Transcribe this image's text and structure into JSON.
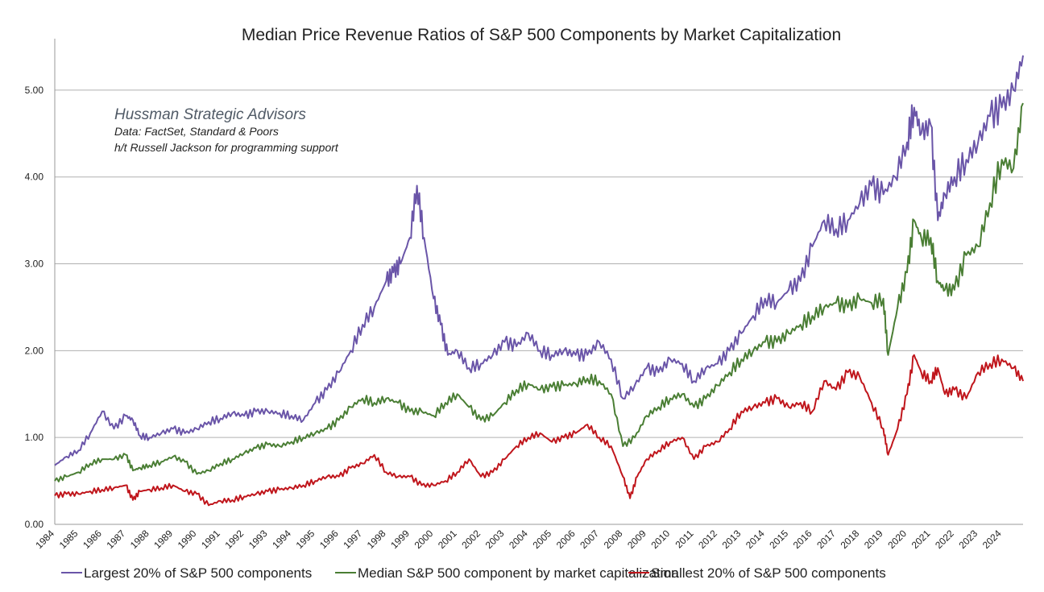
{
  "chart_data": {
    "type": "line",
    "title": "Median Price Revenue Ratios of S&P 500 Components by Market Capitalization",
    "annotations": [
      "Hussman Strategic Advisors",
      "Data: FactSet, Standard & Poors",
      "h/t Russell Jackson for programming support"
    ],
    "xlabel": "",
    "ylabel": "",
    "xlim": [
      1984,
      2024.9
    ],
    "ylim": [
      0,
      5.5
    ],
    "y_ticks": [
      "0.00",
      "1.00",
      "2.00",
      "3.00",
      "4.00",
      "5.00"
    ],
    "x_ticks": [
      "1984",
      "1985",
      "1986",
      "1987",
      "1988",
      "1989",
      "1990",
      "1991",
      "1992",
      "1993",
      "1994",
      "1995",
      "1996",
      "1997",
      "1998",
      "1999",
      "2000",
      "2001",
      "2002",
      "2003",
      "2004",
      "2005",
      "2006",
      "2007",
      "2008",
      "2009",
      "2010",
      "2011",
      "2012",
      "2013",
      "2014",
      "2015",
      "2016",
      "2017",
      "2018",
      "2019",
      "2020",
      "2021",
      "2022",
      "2023",
      "2024"
    ],
    "grid": "horizontal",
    "legend_position": "bottom",
    "series": [
      {
        "name": "Largest 20% of S&P 500 components",
        "color": "#6a55a8",
        "x": [
          1984.0,
          1984.5,
          1985.0,
          1985.5,
          1986.0,
          1986.5,
          1987.0,
          1987.3,
          1987.6,
          1988.0,
          1988.5,
          1989.0,
          1989.5,
          1990.0,
          1990.5,
          1991.0,
          1991.5,
          1992.0,
          1992.5,
          1993.0,
          1993.5,
          1994.0,
          1994.5,
          1995.0,
          1995.5,
          1996.0,
          1996.5,
          1997.0,
          1997.5,
          1998.0,
          1998.3,
          1998.6,
          1999.0,
          1999.3,
          1999.6,
          2000.0,
          2000.3,
          2000.6,
          2001.0,
          2001.5,
          2002.0,
          2002.5,
          2003.0,
          2003.5,
          2004.0,
          2004.5,
          2005.0,
          2005.5,
          2006.0,
          2006.5,
          2007.0,
          2007.5,
          2008.0,
          2008.5,
          2009.0,
          2009.5,
          2010.0,
          2010.5,
          2011.0,
          2011.5,
          2012.0,
          2012.5,
          2013.0,
          2013.5,
          2014.0,
          2014.5,
          2015.0,
          2015.5,
          2016.0,
          2016.5,
          2017.0,
          2017.5,
          2018.0,
          2018.5,
          2019.0,
          2019.5,
          2020.0,
          2020.3,
          2020.6,
          2021.0,
          2021.3,
          2021.6,
          2022.0,
          2022.5,
          2023.0,
          2023.5,
          2024.0,
          2024.5,
          2024.9
        ],
        "values": [
          0.68,
          0.78,
          0.85,
          1.05,
          1.3,
          1.1,
          1.25,
          1.2,
          1.02,
          1.0,
          1.05,
          1.1,
          1.05,
          1.1,
          1.18,
          1.22,
          1.28,
          1.25,
          1.3,
          1.3,
          1.28,
          1.25,
          1.2,
          1.4,
          1.55,
          1.75,
          2.0,
          2.3,
          2.5,
          2.8,
          2.9,
          3.0,
          3.3,
          3.9,
          3.3,
          2.6,
          2.3,
          1.95,
          2.0,
          1.8,
          1.85,
          1.95,
          2.1,
          2.05,
          2.2,
          2.0,
          1.95,
          2.0,
          1.95,
          1.95,
          2.1,
          1.9,
          1.45,
          1.6,
          1.8,
          1.75,
          1.9,
          1.85,
          1.65,
          1.8,
          1.85,
          2.0,
          2.2,
          2.4,
          2.6,
          2.55,
          2.7,
          2.8,
          3.2,
          3.5,
          3.4,
          3.5,
          3.7,
          3.9,
          3.8,
          4.0,
          4.4,
          4.8,
          4.5,
          4.6,
          3.5,
          3.8,
          4.0,
          4.2,
          4.4,
          4.7,
          4.8,
          5.0,
          5.4
        ]
      },
      {
        "name": "Median S&P 500 component by market capitalization",
        "color": "#4a7e34",
        "x": [
          1984.0,
          1984.5,
          1985.0,
          1985.5,
          1986.0,
          1986.5,
          1987.0,
          1987.3,
          1987.6,
          1988.0,
          1988.5,
          1989.0,
          1989.5,
          1990.0,
          1990.5,
          1991.0,
          1991.5,
          1992.0,
          1992.5,
          1993.0,
          1993.5,
          1994.0,
          1994.5,
          1995.0,
          1995.5,
          1996.0,
          1996.5,
          1997.0,
          1997.5,
          1998.0,
          1998.5,
          1999.0,
          1999.5,
          2000.0,
          2000.5,
          2001.0,
          2001.5,
          2002.0,
          2002.5,
          2003.0,
          2003.5,
          2004.0,
          2004.5,
          2005.0,
          2005.5,
          2006.0,
          2006.5,
          2007.0,
          2007.5,
          2008.0,
          2008.5,
          2009.0,
          2009.5,
          2010.0,
          2010.5,
          2011.0,
          2011.5,
          2012.0,
          2012.5,
          2013.0,
          2013.5,
          2014.0,
          2014.5,
          2015.0,
          2015.5,
          2016.0,
          2016.5,
          2017.0,
          2017.5,
          2018.0,
          2018.5,
          2019.0,
          2019.2,
          2019.6,
          2020.0,
          2020.3,
          2020.6,
          2021.0,
          2021.3,
          2021.6,
          2022.0,
          2022.5,
          2023.0,
          2023.5,
          2024.0,
          2024.5,
          2024.9
        ],
        "values": [
          0.5,
          0.55,
          0.6,
          0.7,
          0.75,
          0.75,
          0.8,
          0.62,
          0.65,
          0.68,
          0.72,
          0.78,
          0.72,
          0.58,
          0.62,
          0.7,
          0.75,
          0.82,
          0.88,
          0.92,
          0.9,
          0.95,
          1.0,
          1.05,
          1.1,
          1.2,
          1.35,
          1.45,
          1.4,
          1.45,
          1.4,
          1.3,
          1.3,
          1.25,
          1.4,
          1.5,
          1.35,
          1.2,
          1.25,
          1.4,
          1.55,
          1.62,
          1.55,
          1.58,
          1.6,
          1.62,
          1.68,
          1.65,
          1.5,
          0.9,
          1.0,
          1.25,
          1.35,
          1.45,
          1.5,
          1.35,
          1.45,
          1.6,
          1.75,
          1.9,
          2.0,
          2.1,
          2.1,
          2.2,
          2.3,
          2.4,
          2.5,
          2.55,
          2.5,
          2.6,
          2.55,
          2.6,
          1.95,
          2.5,
          2.9,
          3.5,
          3.3,
          3.3,
          2.8,
          2.7,
          2.7,
          3.1,
          3.2,
          3.7,
          4.2,
          4.1,
          4.85
        ]
      },
      {
        "name": "Smallest 20% of S&P 500 components",
        "color": "#c0161c",
        "x": [
          1984.0,
          1984.5,
          1985.0,
          1985.5,
          1986.0,
          1986.5,
          1987.0,
          1987.3,
          1987.6,
          1988.0,
          1988.5,
          1989.0,
          1989.5,
          1990.0,
          1990.5,
          1991.0,
          1991.5,
          1992.0,
          1992.5,
          1993.0,
          1993.5,
          1994.0,
          1994.5,
          1995.0,
          1995.5,
          1996.0,
          1996.5,
          1997.0,
          1997.5,
          1998.0,
          1998.5,
          1999.0,
          1999.5,
          2000.0,
          2000.5,
          2001.0,
          2001.5,
          2002.0,
          2002.5,
          2003.0,
          2003.5,
          2004.0,
          2004.5,
          2005.0,
          2005.5,
          2006.0,
          2006.5,
          2007.0,
          2007.5,
          2008.0,
          2008.3,
          2008.6,
          2009.0,
          2009.5,
          2010.0,
          2010.5,
          2011.0,
          2011.5,
          2012.0,
          2012.5,
          2013.0,
          2013.5,
          2014.0,
          2014.5,
          2015.0,
          2015.5,
          2016.0,
          2016.5,
          2017.0,
          2017.5,
          2018.0,
          2018.5,
          2019.0,
          2019.2,
          2019.6,
          2020.0,
          2020.3,
          2020.6,
          2021.0,
          2021.3,
          2021.6,
          2022.0,
          2022.5,
          2023.0,
          2023.5,
          2024.0,
          2024.5,
          2024.9
        ],
        "values": [
          0.33,
          0.35,
          0.35,
          0.38,
          0.4,
          0.42,
          0.45,
          0.28,
          0.38,
          0.4,
          0.42,
          0.45,
          0.38,
          0.35,
          0.22,
          0.27,
          0.28,
          0.32,
          0.35,
          0.38,
          0.4,
          0.42,
          0.45,
          0.5,
          0.55,
          0.55,
          0.65,
          0.7,
          0.8,
          0.6,
          0.55,
          0.55,
          0.45,
          0.45,
          0.5,
          0.6,
          0.75,
          0.55,
          0.6,
          0.75,
          0.9,
          1.0,
          1.05,
          0.95,
          1.0,
          1.05,
          1.15,
          1.0,
          0.9,
          0.55,
          0.3,
          0.55,
          0.75,
          0.85,
          0.95,
          1.0,
          0.75,
          0.9,
          0.95,
          1.1,
          1.3,
          1.35,
          1.4,
          1.45,
          1.35,
          1.4,
          1.3,
          1.65,
          1.55,
          1.75,
          1.7,
          1.4,
          1.1,
          0.8,
          1.1,
          1.5,
          1.95,
          1.75,
          1.65,
          1.8,
          1.5,
          1.55,
          1.45,
          1.75,
          1.85,
          1.9,
          1.8,
          1.65
        ]
      }
    ]
  }
}
